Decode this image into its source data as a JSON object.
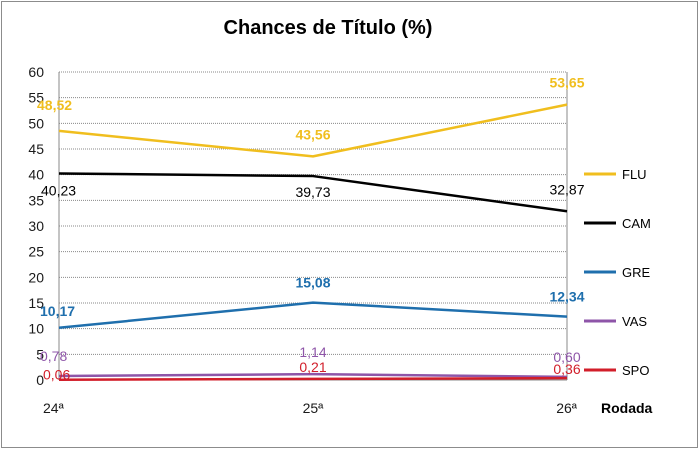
{
  "chart_data": {
    "type": "line",
    "title": "Chances de Título (%)",
    "xlabel": "Rodada",
    "ylabel": "",
    "categories": [
      "24ª",
      "25ª",
      "26ª"
    ],
    "ylim": [
      0,
      60
    ],
    "ytick_step": 5,
    "grid": "horizontal",
    "legend_position": "right",
    "series": [
      {
        "name": "FLU",
        "color": "#f0be1e",
        "values": [
          48.52,
          43.56,
          53.65
        ],
        "labels": [
          "48,52",
          "43,56",
          "53,65"
        ],
        "label_bold": true
      },
      {
        "name": "CAM",
        "color": "#000000",
        "values": [
          40.23,
          39.73,
          32.87
        ],
        "labels": [
          "40,23",
          "39,73",
          "32,87"
        ],
        "label_bold": false
      },
      {
        "name": "GRE",
        "color": "#1f6fad",
        "values": [
          10.17,
          15.08,
          12.34
        ],
        "labels": [
          "10,17",
          "15,08",
          "12,34"
        ],
        "label_bold": true
      },
      {
        "name": "VAS",
        "color": "#8e55a8",
        "values": [
          0.78,
          1.14,
          0.6
        ],
        "labels": [
          "0,78",
          "1,14",
          "0,60"
        ],
        "label_bold": false
      },
      {
        "name": "SPO",
        "color": "#d21e2a",
        "values": [
          0.06,
          0.21,
          0.36
        ],
        "labels": [
          "0,06",
          "0,21",
          "0,36"
        ],
        "label_bold": false
      }
    ]
  }
}
